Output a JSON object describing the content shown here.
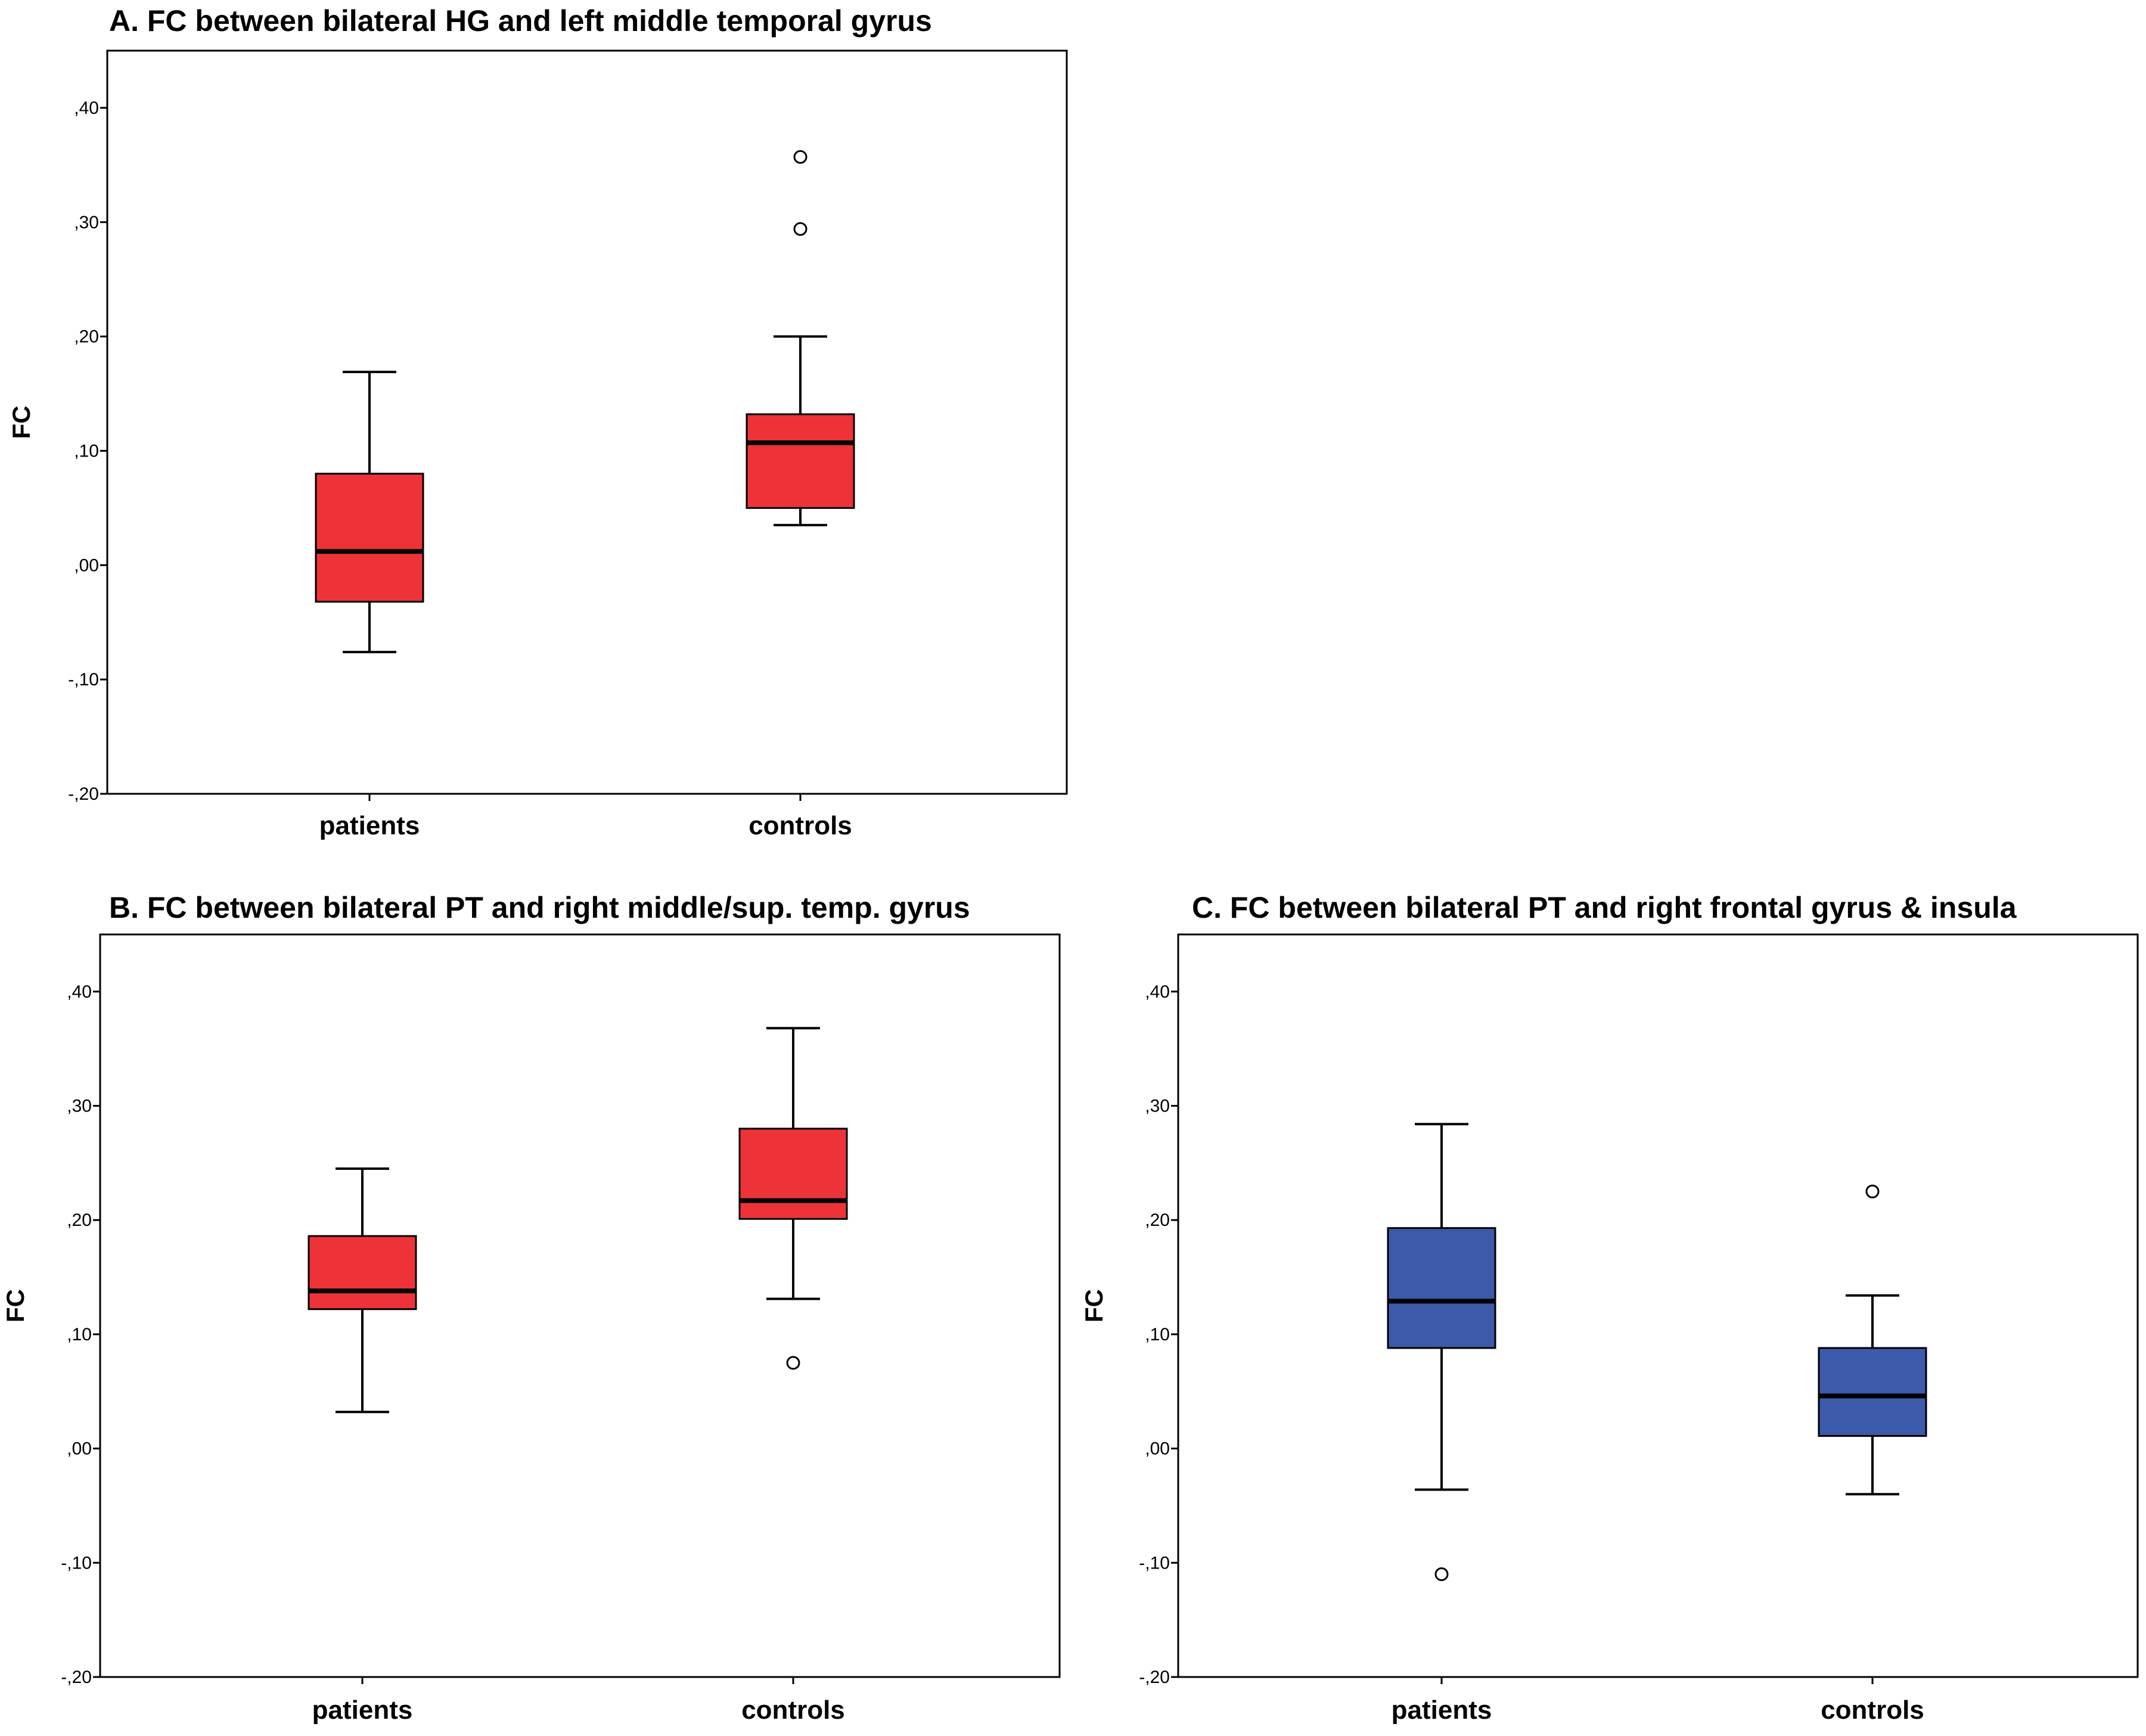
{
  "chart_data": [
    {
      "type": "boxplot",
      "panel": "A",
      "title": "A. FC between bilateral HG and left middle temporal gyrus",
      "ylabel": "FC",
      "ylim": [
        -0.2,
        0.45
      ],
      "yticks": [
        -0.2,
        -0.1,
        0.0,
        0.1,
        0.2,
        0.3,
        0.4
      ],
      "ytick_labels": [
        "-,20",
        "-,10",
        ",00",
        ",10",
        ",20",
        ",30",
        ",40"
      ],
      "box_color": "#ee3338",
      "categories": [
        "patients",
        "controls"
      ],
      "boxes": [
        {
          "category": "patients",
          "whisker_low": -0.076,
          "q1": -0.032,
          "median": 0.012,
          "q3": 0.08,
          "whisker_high": 0.169,
          "outliers": []
        },
        {
          "category": "controls",
          "whisker_low": 0.035,
          "q1": 0.05,
          "median": 0.107,
          "q3": 0.132,
          "whisker_high": 0.2,
          "outliers": [
            0.294,
            0.357
          ]
        }
      ]
    },
    {
      "type": "boxplot",
      "panel": "B",
      "title": "B. FC between bilateral PT and right middle/sup. temp. gyrus",
      "ylabel": "FC",
      "ylim": [
        -0.2,
        0.45
      ],
      "yticks": [
        -0.2,
        -0.1,
        0.0,
        0.1,
        0.2,
        0.3,
        0.4
      ],
      "ytick_labels": [
        "-,20",
        "-,10",
        ",00",
        ",10",
        ",20",
        ",30",
        ",40"
      ],
      "box_color": "#ee3338",
      "categories": [
        "patients",
        "controls"
      ],
      "boxes": [
        {
          "category": "patients",
          "whisker_low": 0.032,
          "q1": 0.122,
          "median": 0.138,
          "q3": 0.186,
          "whisker_high": 0.245,
          "outliers": []
        },
        {
          "category": "controls",
          "whisker_low": 0.131,
          "q1": 0.201,
          "median": 0.217,
          "q3": 0.28,
          "whisker_high": 0.368,
          "outliers": [
            0.075
          ]
        }
      ]
    },
    {
      "type": "boxplot",
      "panel": "C",
      "title": "C. FC between bilateral PT and  right  frontal gyrus & insula",
      "ylabel": "FC",
      "ylim": [
        -0.2,
        0.45
      ],
      "yticks": [
        -0.2,
        -0.1,
        0.0,
        0.1,
        0.2,
        0.3,
        0.4
      ],
      "ytick_labels": [
        "-,20",
        "-,10",
        ",00",
        ",10",
        ",20",
        ",30",
        ",40"
      ],
      "box_color": "#3c59aa",
      "categories": [
        "patients",
        "controls"
      ],
      "boxes": [
        {
          "category": "patients",
          "whisker_low": -0.036,
          "q1": 0.088,
          "median": 0.129,
          "q3": 0.193,
          "whisker_high": 0.284,
          "outliers": [
            -0.11
          ]
        },
        {
          "category": "controls",
          "whisker_low": -0.04,
          "q1": 0.011,
          "median": 0.046,
          "q3": 0.088,
          "whisker_high": 0.134,
          "outliers": [
            0.225
          ]
        }
      ]
    }
  ]
}
